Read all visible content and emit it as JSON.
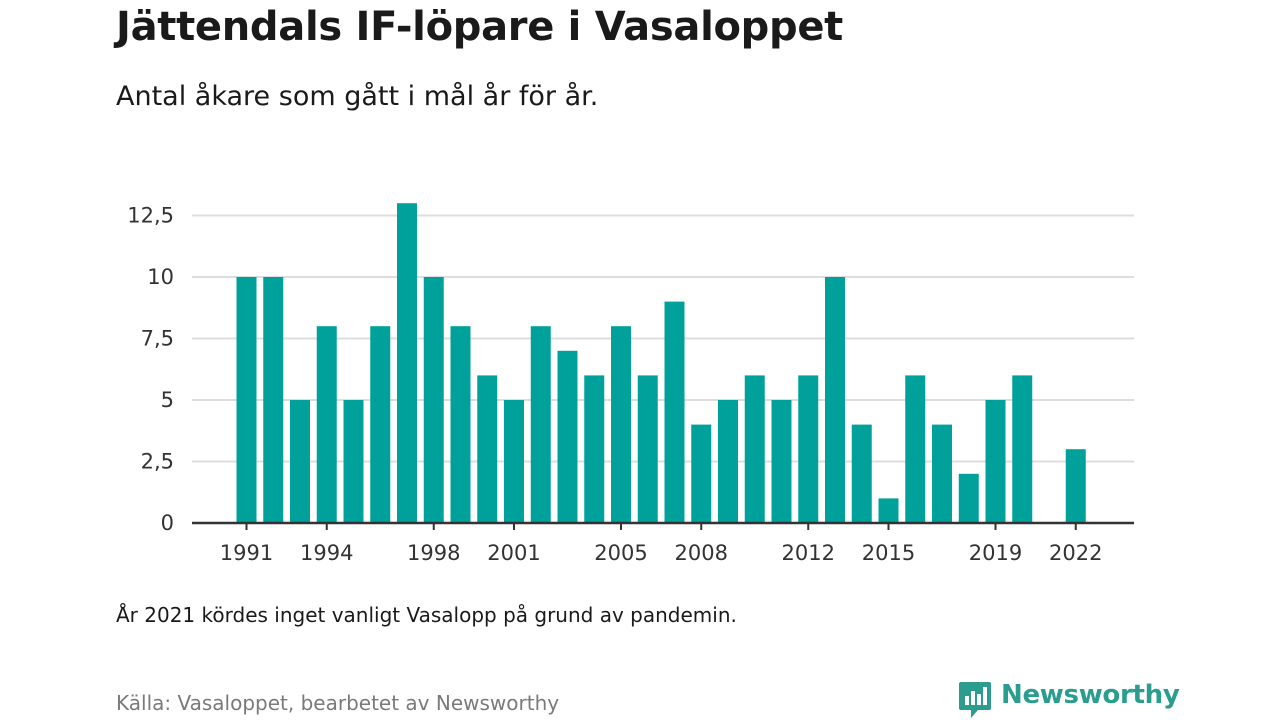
{
  "title": "Jättendals IF-löpare i Vasaloppet",
  "subtitle": "Antal åkare som gått i mål år för år.",
  "note": "År 2021 kördes inget vanligt Vasalopp på grund av pandemin.",
  "source": "Källa: Vasaloppet, bearbetet av Newsworthy",
  "logo": {
    "text": "Newsworthy",
    "icon": "newsworthy-logo-icon"
  },
  "colors": {
    "bar": "#00a19a",
    "grid": "#dddddd",
    "axis": "#333333",
    "logo": "#2a9d8f"
  },
  "chart_data": {
    "type": "bar",
    "categories": [
      1991,
      1992,
      1993,
      1994,
      1995,
      1996,
      1997,
      1998,
      1999,
      2000,
      2001,
      2002,
      2003,
      2004,
      2005,
      2006,
      2007,
      2008,
      2009,
      2010,
      2011,
      2012,
      2013,
      2014,
      2015,
      2016,
      2017,
      2018,
      2019,
      2020,
      2021,
      2022
    ],
    "values": [
      10,
      10,
      5,
      8,
      5,
      8,
      13,
      10,
      8,
      6,
      5,
      8,
      7,
      6,
      8,
      6,
      9,
      4,
      5,
      6,
      5,
      6,
      10,
      4,
      1,
      6,
      4,
      2,
      5,
      6,
      null,
      3
    ],
    "x_tick_labels": [
      "1991",
      "1994",
      "1998",
      "2001",
      "2005",
      "2008",
      "2012",
      "2015",
      "2019",
      "2022"
    ],
    "y_ticks": [
      0,
      2.5,
      5,
      7.5,
      10,
      12.5
    ],
    "y_tick_labels": [
      "0",
      "2,5",
      "5",
      "7,5",
      "10",
      "12,5"
    ],
    "ylim": [
      0,
      13
    ],
    "grid": true,
    "legend": false
  }
}
